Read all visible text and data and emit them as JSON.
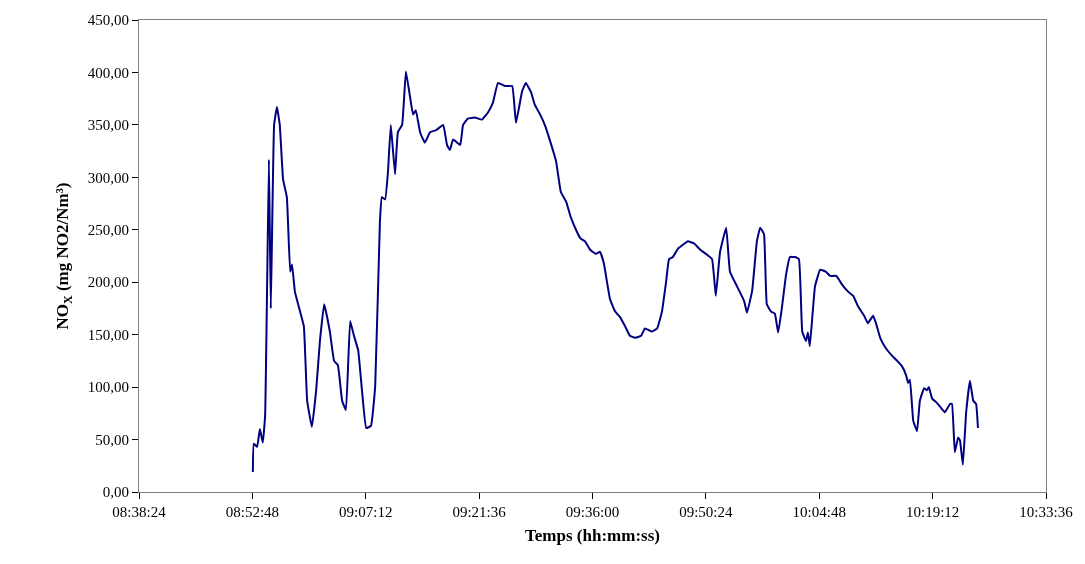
{
  "chart_data": {
    "type": "line",
    "xlabel": "Temps (hh:mm:ss)",
    "ylabel": "NO$_{X}$ (mg NO2/Nm³)",
    "xlim": [
      8.64,
      10.56
    ],
    "xticks": [
      {
        "value": 8.64,
        "label": "08:38:24"
      },
      {
        "value": 8.88,
        "label": "08:52:48"
      },
      {
        "value": 9.12,
        "label": "09:07:12"
      },
      {
        "value": 9.36,
        "label": "09:21:36"
      },
      {
        "value": 9.6,
        "label": "09:36:00"
      },
      {
        "value": 9.84,
        "label": "09:50:24"
      },
      {
        "value": 10.08,
        "label": "10:04:48"
      },
      {
        "value": 10.32,
        "label": "10:19:12"
      },
      {
        "value": 10.56,
        "label": "10:33:36"
      }
    ],
    "ylim": [
      0,
      450
    ],
    "yticks": [
      {
        "value": 0,
        "label": "0,00"
      },
      {
        "value": 50,
        "label": "50,00"
      },
      {
        "value": 100,
        "label": "100,00"
      },
      {
        "value": 150,
        "label": "150,00"
      },
      {
        "value": 200,
        "label": "200,00"
      },
      {
        "value": 250,
        "label": "250,00"
      },
      {
        "value": 300,
        "label": "300,00"
      },
      {
        "value": 350,
        "label": "350,00"
      },
      {
        "value": 400,
        "label": "400,00"
      },
      {
        "value": 450,
        "label": "450,00"
      }
    ],
    "marker": "none",
    "line_style": "solid",
    "series": [
      {
        "color": "#000080",
        "x": [
          8.881,
          8.883,
          8.89,
          8.896,
          8.902,
          8.907,
          8.915,
          8.919,
          8.926,
          8.932,
          8.938,
          8.945,
          8.953,
          8.96,
          8.964,
          8.97,
          8.981,
          8.989,
          8.996,
          9.006,
          9.015,
          9.023,
          9.032,
          9.044,
          9.053,
          9.061,
          9.07,
          9.078,
          9.087,
          9.095,
          9.104,
          9.112,
          9.121,
          9.131,
          9.14,
          9.15,
          9.154,
          9.161,
          9.167,
          9.173,
          9.182,
          9.188,
          9.197,
          9.205,
          9.214,
          9.22,
          9.226,
          9.235,
          9.245,
          9.256,
          9.269,
          9.284,
          9.292,
          9.298,
          9.305,
          9.32,
          9.326,
          9.336,
          9.351,
          9.366,
          9.379,
          9.389,
          9.4,
          9.415,
          9.43,
          9.438,
          9.451,
          9.459,
          9.47,
          9.478,
          9.489,
          9.499,
          9.51,
          9.523,
          9.533,
          9.544,
          9.554,
          9.565,
          9.574,
          9.584,
          9.595,
          9.607,
          9.616,
          9.624,
          9.637,
          9.648,
          9.658,
          9.669,
          9.679,
          9.69,
          9.703,
          9.711,
          9.726,
          9.737,
          9.747,
          9.756,
          9.762,
          9.77,
          9.781,
          9.792,
          9.802,
          9.815,
          9.828,
          9.84,
          9.853,
          9.861,
          9.87,
          9.883,
          9.891,
          9.906,
          9.921,
          9.927,
          9.938,
          9.948,
          9.955,
          9.963,
          9.969,
          9.978,
          9.986,
          9.993,
          10.001,
          10.01,
          10.018,
          10.029,
          10.037,
          10.044,
          10.052,
          10.056,
          10.06,
          10.071,
          10.082,
          10.094,
          10.103,
          10.116,
          10.128,
          10.141,
          10.152,
          10.162,
          10.175,
          10.183,
          10.194,
          10.2,
          10.209,
          10.221,
          10.234,
          10.245,
          10.255,
          10.264,
          10.268,
          10.272,
          10.279,
          10.287,
          10.293,
          10.302,
          10.308,
          10.312,
          10.319,
          10.329,
          10.34,
          10.346,
          10.357,
          10.361,
          10.367,
          10.374,
          10.378,
          10.384,
          10.391,
          10.399,
          10.406,
          10.412,
          10.416
        ],
        "values": [
          19,
          46,
          43,
          60,
          47,
          73,
          317,
          175,
          350,
          367,
          350,
          298,
          281,
          210,
          217,
          191,
          172,
          158,
          87,
          62,
          97,
          144,
          179,
          153,
          125,
          121,
          87,
          78,
          163,
          149,
          135,
          97,
          61,
          63,
          101,
          258,
          281,
          279,
          305,
          350,
          303,
          343,
          350,
          401,
          376,
          360,
          364,
          343,
          333,
          343,
          345,
          350,
          331,
          326,
          336,
          331,
          350,
          356,
          357,
          355,
          362,
          371,
          390,
          387,
          387,
          352,
          382,
          390,
          381,
          369,
          360,
          350,
          335,
          315,
          286,
          277,
          262,
          250,
          242,
          239,
          231,
          227,
          229,
          218,
          184,
          172,
          167,
          158,
          149,
          147,
          149,
          156,
          153,
          156,
          172,
          201,
          222,
          224,
          232,
          236,
          239,
          237,
          231,
          227,
          222,
          187,
          229,
          252,
          210,
          196,
          182,
          171,
          192,
          239,
          252,
          246,
          179,
          172,
          170,
          152,
          176,
          208,
          224,
          224,
          222,
          153,
          144,
          152,
          139,
          196,
          212,
          210,
          206,
          206,
          198,
          191,
          187,
          177,
          168,
          161,
          168,
          161,
          147,
          137,
          130,
          125,
          120,
          111,
          104,
          107,
          68,
          58,
          87,
          99,
          97,
          100,
          89,
          85,
          79,
          76,
          84,
          84,
          38,
          52,
          49,
          26,
          76,
          106,
          87,
          84,
          61
        ]
      }
    ]
  }
}
